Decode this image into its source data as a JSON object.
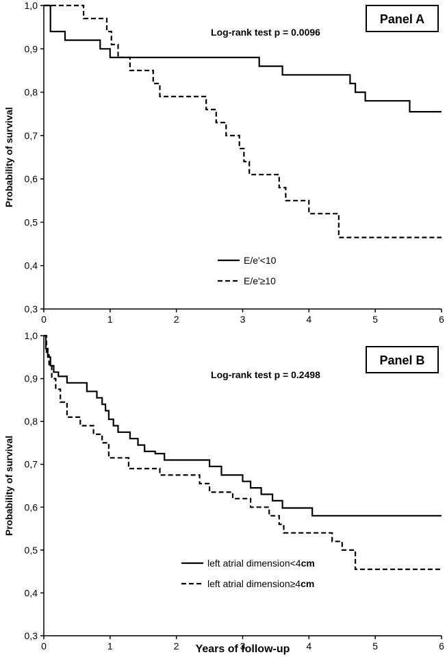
{
  "chart_data": [
    {
      "type": "line",
      "panel_label": "Panel A",
      "annotation": "Log-rank test p = 0.0096",
      "ylabel": "Probability of survival",
      "xlabel": "",
      "xlim": [
        0,
        6
      ],
      "ylim": [
        0.3,
        1.0
      ],
      "x_ticks": [
        "0",
        "1",
        "2",
        "3",
        "4",
        "5",
        "6"
      ],
      "y_ticks": [
        "0,3",
        "0,4",
        "0,5",
        "0,6",
        "0,7",
        "0,8",
        "0,9",
        "1,0"
      ],
      "legend": {
        "position": "center-left"
      },
      "series": [
        {
          "name": "E/e'<10",
          "style": "solid",
          "x": [
            0,
            0.1,
            0.1,
            0.32,
            0.32,
            0.85,
            0.85,
            1.0,
            1.0,
            3.25,
            3.25,
            3.6,
            3.6,
            4.62,
            4.62,
            4.7,
            4.7,
            4.85,
            4.85,
            5.52,
            5.52,
            6.0
          ],
          "y": [
            1.0,
            1.0,
            0.94,
            0.94,
            0.92,
            0.92,
            0.9,
            0.9,
            0.88,
            0.88,
            0.86,
            0.86,
            0.84,
            0.84,
            0.82,
            0.82,
            0.8,
            0.8,
            0.78,
            0.78,
            0.755,
            0.755
          ]
        },
        {
          "name": "E/e'≥10",
          "style": "dashed",
          "x": [
            0,
            0.6,
            0.6,
            0.95,
            0.95,
            1.02,
            1.02,
            1.12,
            1.12,
            1.3,
            1.3,
            1.65,
            1.65,
            1.75,
            1.75,
            2.45,
            2.45,
            2.6,
            2.6,
            2.75,
            2.75,
            2.95,
            2.95,
            3.02,
            3.02,
            3.1,
            3.1,
            3.55,
            3.55,
            3.65,
            3.65,
            4.0,
            4.0,
            4.45,
            4.45,
            5.55,
            5.55,
            6.0
          ],
          "y": [
            1.0,
            1.0,
            0.97,
            0.97,
            0.94,
            0.94,
            0.91,
            0.91,
            0.88,
            0.88,
            0.85,
            0.85,
            0.82,
            0.82,
            0.79,
            0.79,
            0.76,
            0.76,
            0.73,
            0.73,
            0.7,
            0.7,
            0.67,
            0.67,
            0.64,
            0.64,
            0.61,
            0.61,
            0.58,
            0.58,
            0.55,
            0.55,
            0.52,
            0.52,
            0.465,
            0.465,
            0.465,
            0.465
          ]
        }
      ]
    },
    {
      "type": "line",
      "panel_label": "Panel B",
      "annotation": "Log-rank test p = 0.2498",
      "ylabel": "Probability of survival",
      "xlabel": "Years of follow-up",
      "xlim": [
        0,
        6
      ],
      "ylim": [
        0.3,
        1.0
      ],
      "x_ticks": [
        "0",
        "1",
        "2",
        "3",
        "4",
        "5",
        "6"
      ],
      "y_ticks": [
        "0,3",
        "0,4",
        "0,5",
        "0,6",
        "0,7",
        "0,8",
        "0,9",
        "1,0"
      ],
      "legend": {
        "position": "bottom-right"
      },
      "series": [
        {
          "name": "left atrial dimension<4",
          "unit": "cm",
          "style": "solid",
          "x": [
            0,
            0.03,
            0.03,
            0.06,
            0.06,
            0.1,
            0.1,
            0.15,
            0.15,
            0.22,
            0.22,
            0.35,
            0.35,
            0.65,
            0.65,
            0.8,
            0.8,
            0.88,
            0.88,
            0.93,
            0.93,
            0.98,
            0.98,
            1.05,
            1.05,
            1.12,
            1.12,
            1.3,
            1.3,
            1.42,
            1.42,
            1.52,
            1.52,
            1.68,
            1.68,
            1.82,
            1.82,
            2.5,
            2.5,
            2.68,
            2.68,
            3.0,
            3.0,
            3.12,
            3.12,
            3.28,
            3.28,
            3.45,
            3.45,
            3.6,
            3.6,
            4.05,
            4.05,
            4.85,
            4.85,
            6.0
          ],
          "y": [
            1.0,
            1.0,
            0.97,
            0.97,
            0.95,
            0.95,
            0.93,
            0.93,
            0.915,
            0.915,
            0.905,
            0.905,
            0.89,
            0.89,
            0.87,
            0.87,
            0.855,
            0.855,
            0.84,
            0.84,
            0.825,
            0.825,
            0.805,
            0.805,
            0.79,
            0.79,
            0.775,
            0.775,
            0.76,
            0.76,
            0.745,
            0.745,
            0.73,
            0.73,
            0.725,
            0.725,
            0.71,
            0.71,
            0.695,
            0.695,
            0.675,
            0.675,
            0.66,
            0.66,
            0.645,
            0.645,
            0.63,
            0.63,
            0.615,
            0.615,
            0.598,
            0.598,
            0.58,
            0.58,
            0.58,
            0.58
          ]
        },
        {
          "name": "left atrial dimension≥4",
          "unit": "cm",
          "style": "dashed",
          "x": [
            0,
            0.04,
            0.04,
            0.08,
            0.08,
            0.12,
            0.12,
            0.18,
            0.18,
            0.25,
            0.25,
            0.35,
            0.35,
            0.55,
            0.55,
            0.75,
            0.75,
            0.88,
            0.88,
            0.98,
            0.98,
            1.28,
            1.28,
            1.75,
            1.75,
            2.35,
            2.35,
            2.5,
            2.5,
            2.85,
            2.85,
            3.12,
            3.12,
            3.4,
            3.4,
            3.55,
            3.55,
            3.62,
            3.62,
            4.35,
            4.35,
            4.5,
            4.5,
            4.7,
            4.7,
            5.5,
            5.5,
            6.0
          ],
          "y": [
            1.0,
            1.0,
            0.955,
            0.955,
            0.93,
            0.93,
            0.9,
            0.9,
            0.875,
            0.875,
            0.845,
            0.845,
            0.81,
            0.81,
            0.79,
            0.79,
            0.77,
            0.77,
            0.75,
            0.75,
            0.715,
            0.715,
            0.69,
            0.69,
            0.675,
            0.675,
            0.655,
            0.655,
            0.635,
            0.635,
            0.62,
            0.62,
            0.6,
            0.6,
            0.58,
            0.58,
            0.56,
            0.56,
            0.54,
            0.54,
            0.52,
            0.52,
            0.5,
            0.5,
            0.455,
            0.455,
            0.455,
            0.455
          ]
        }
      ]
    }
  ]
}
